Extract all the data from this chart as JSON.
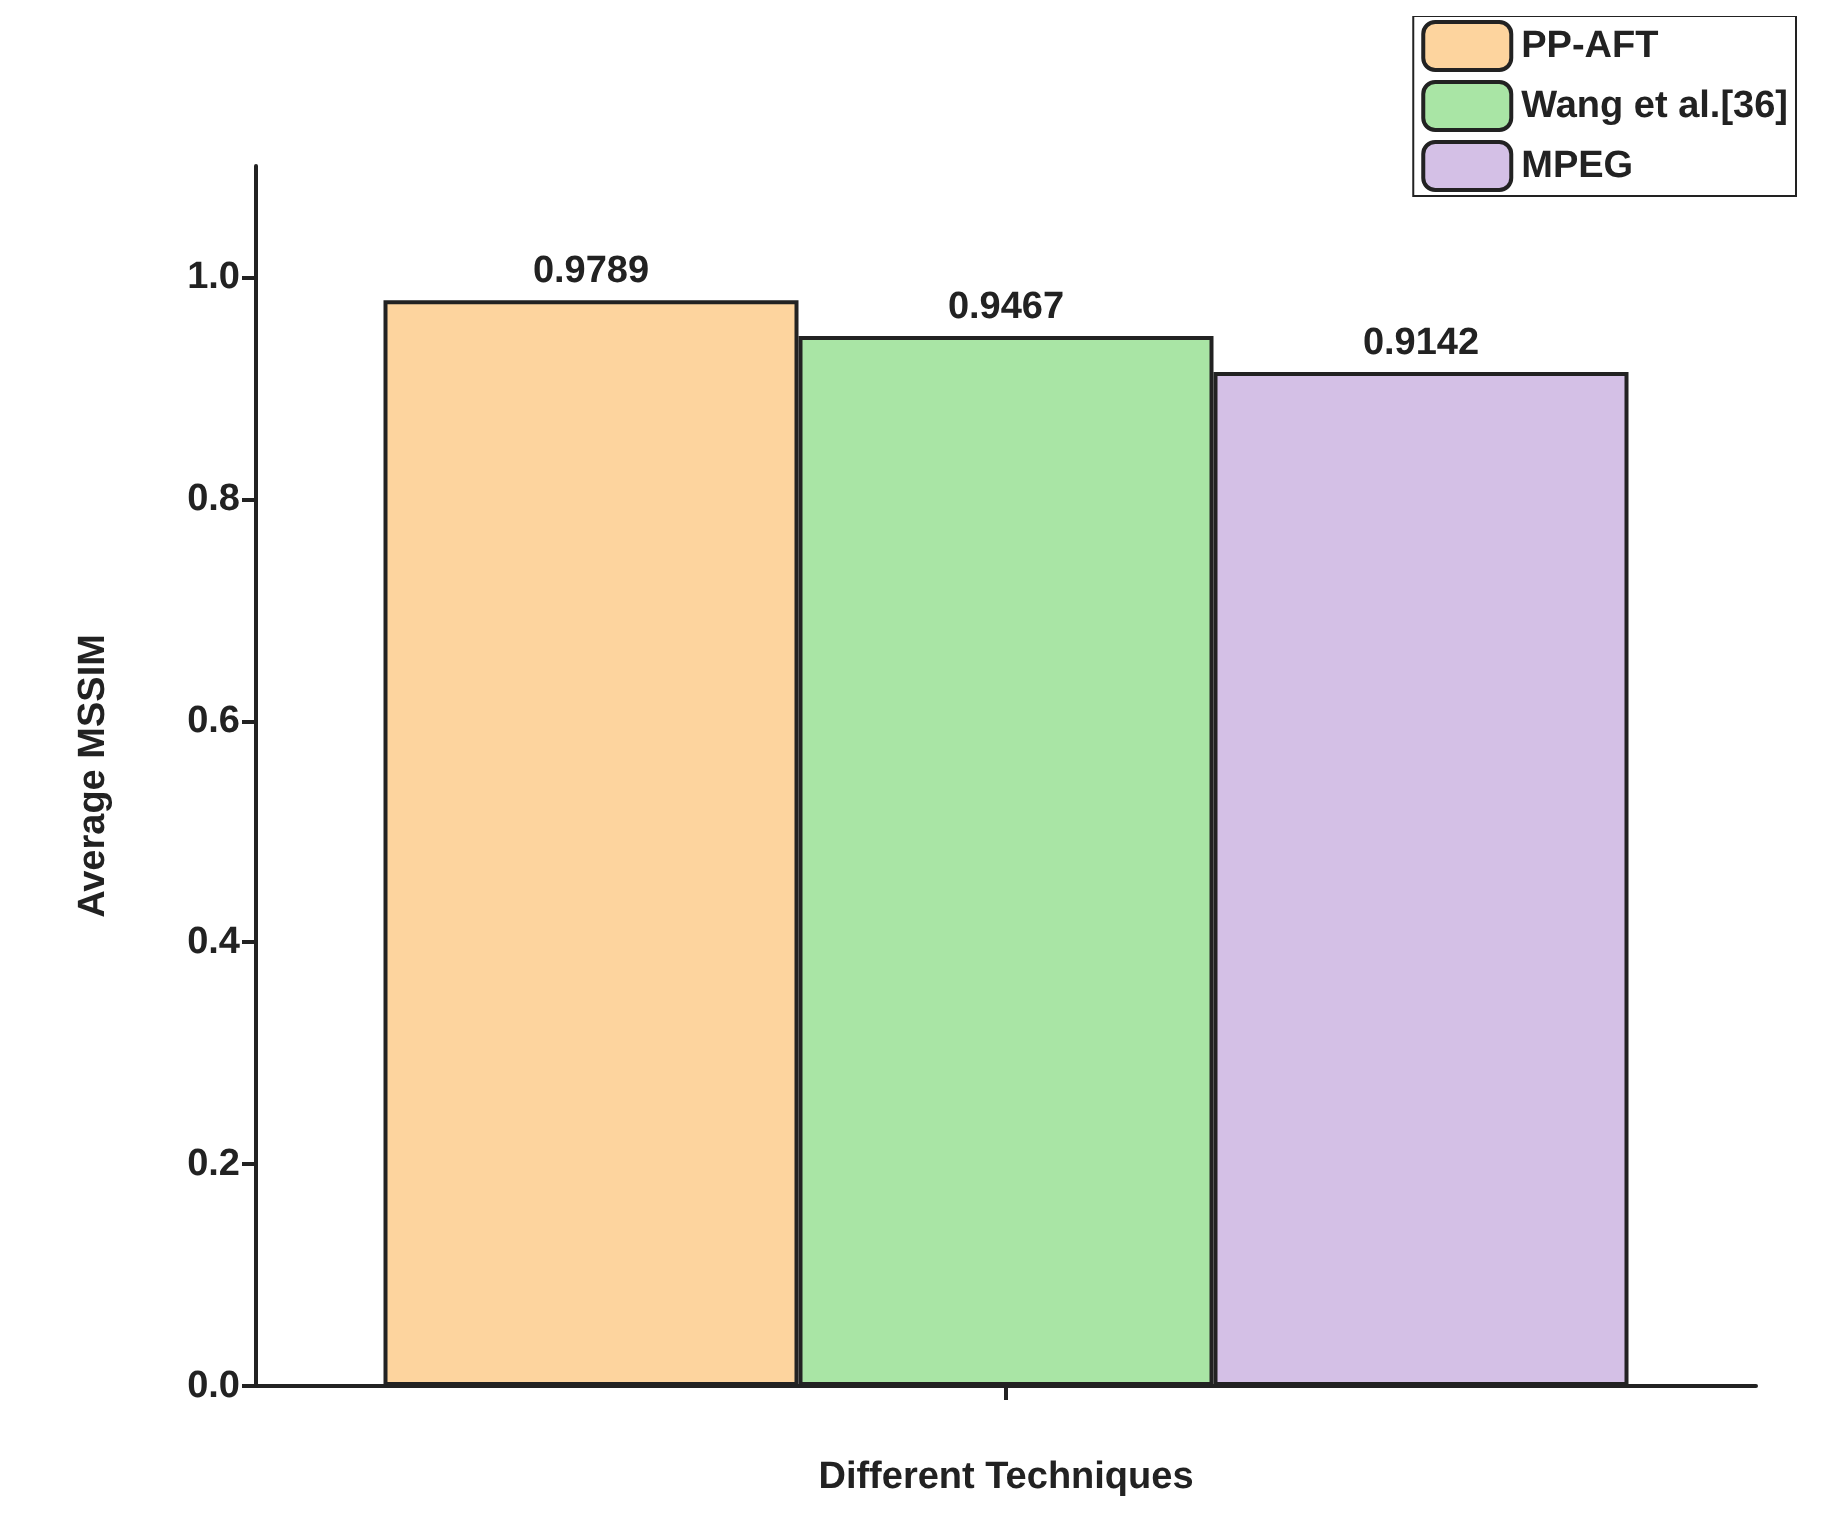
{
  "chart_data": {
    "type": "bar",
    "xlabel": "Different Techniques",
    "ylabel": "Average MSSIM",
    "categories": [
      null
    ],
    "series": [
      {
        "name": "PP-AFT",
        "color": "#fdd49e",
        "values": [
          0.9789
        ]
      },
      {
        "name": "Wang et al.[36]",
        "color": "#a9e5a5",
        "values": [
          0.9467
        ]
      },
      {
        "name": "MPEG",
        "color": "#d4c0e6",
        "values": [
          0.9142
        ]
      }
    ],
    "ylim": [
      0,
      1.1
    ],
    "yticks": [
      {
        "value": 0,
        "label": "0.0"
      },
      0.2,
      0.4,
      0.6,
      0.8,
      {
        "value": 1,
        "label": "1.0"
      }
    ],
    "data_labels": true,
    "legend": "top right",
    "grid": false
  }
}
